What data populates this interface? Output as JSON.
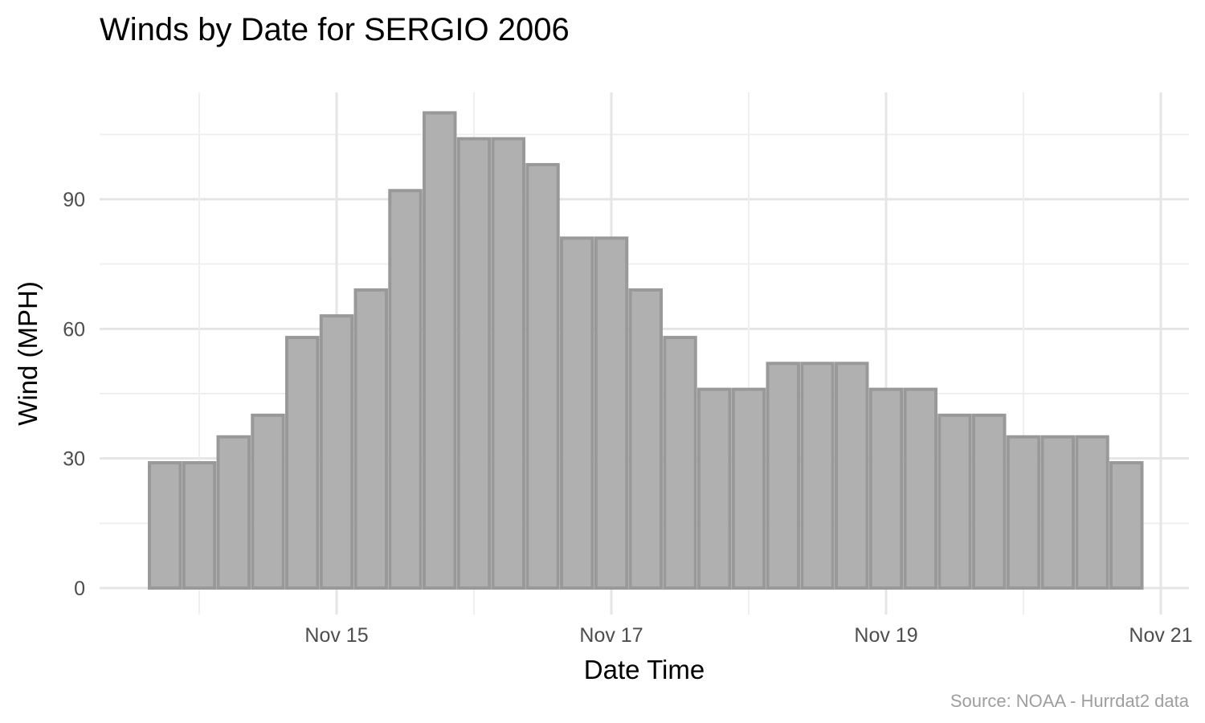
{
  "chart_data": {
    "type": "bar",
    "title": "Winds by Date for SERGIO 2006",
    "xlabel": "Date Time",
    "ylabel": "Wind (MPH)",
    "caption": "Source: NOAA - Hurrdat2 data",
    "x_ticks": [
      {
        "label": "Nov 15",
        "date": "2006-11-15"
      },
      {
        "label": "Nov 17",
        "date": "2006-11-17"
      },
      {
        "label": "Nov 19",
        "date": "2006-11-19"
      },
      {
        "label": "Nov 21",
        "date": "2006-11-21"
      }
    ],
    "y_ticks": [
      0,
      30,
      60,
      90
    ],
    "ylim": [
      0,
      115
    ],
    "xlim": [
      "2006-11-13 09:00",
      "2006-11-21 03:00"
    ],
    "grid": true,
    "bar_fill": "#b0b0b0",
    "bar_border": "#999999",
    "bars": [
      {
        "datetime": "2006-11-13 18:00",
        "value": 29
      },
      {
        "datetime": "2006-11-14 00:00",
        "value": 29
      },
      {
        "datetime": "2006-11-14 06:00",
        "value": 35
      },
      {
        "datetime": "2006-11-14 12:00",
        "value": 40
      },
      {
        "datetime": "2006-11-14 18:00",
        "value": 58
      },
      {
        "datetime": "2006-11-15 00:00",
        "value": 63
      },
      {
        "datetime": "2006-11-15 06:00",
        "value": 69
      },
      {
        "datetime": "2006-11-15 12:00",
        "value": 92
      },
      {
        "datetime": "2006-11-15 18:00",
        "value": 110
      },
      {
        "datetime": "2006-11-16 00:00",
        "value": 104
      },
      {
        "datetime": "2006-11-16 06:00",
        "value": 104
      },
      {
        "datetime": "2006-11-16 12:00",
        "value": 98
      },
      {
        "datetime": "2006-11-16 18:00",
        "value": 81
      },
      {
        "datetime": "2006-11-17 00:00",
        "value": 81
      },
      {
        "datetime": "2006-11-17 06:00",
        "value": 69
      },
      {
        "datetime": "2006-11-17 12:00",
        "value": 58
      },
      {
        "datetime": "2006-11-17 18:00",
        "value": 46
      },
      {
        "datetime": "2006-11-18 00:00",
        "value": 46
      },
      {
        "datetime": "2006-11-18 06:00",
        "value": 52
      },
      {
        "datetime": "2006-11-18 12:00",
        "value": 52
      },
      {
        "datetime": "2006-11-18 18:00",
        "value": 52
      },
      {
        "datetime": "2006-11-19 00:00",
        "value": 46
      },
      {
        "datetime": "2006-11-19 06:00",
        "value": 46
      },
      {
        "datetime": "2006-11-19 12:00",
        "value": 40
      },
      {
        "datetime": "2006-11-19 18:00",
        "value": 40
      },
      {
        "datetime": "2006-11-20 00:00",
        "value": 35
      },
      {
        "datetime": "2006-11-20 06:00",
        "value": 35
      },
      {
        "datetime": "2006-11-20 12:00",
        "value": 35
      },
      {
        "datetime": "2006-11-20 18:00",
        "value": 29
      }
    ]
  }
}
